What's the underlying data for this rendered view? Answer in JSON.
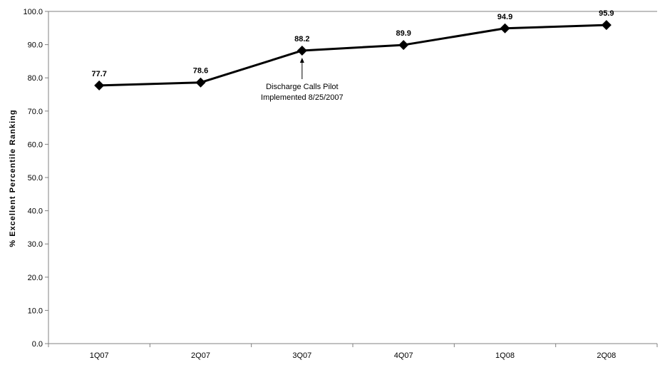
{
  "chart_data": {
    "type": "line",
    "title": "",
    "xlabel": "",
    "ylabel": "% Excellent Percentile Ranking",
    "categories": [
      "1Q07",
      "2Q07",
      "3Q07",
      "4Q07",
      "1Q08",
      "2Q08"
    ],
    "series": [
      {
        "values": [
          77.7,
          78.6,
          88.2,
          89.9,
          94.9,
          95.9
        ]
      }
    ],
    "data_labels": [
      "77.7",
      "78.6",
      "88.2",
      "89.9",
      "94.9",
      "95.9"
    ],
    "ylim": [
      0,
      100
    ],
    "yticks": [
      0,
      10,
      20,
      30,
      40,
      50,
      60,
      70,
      80,
      90,
      100
    ],
    "ytick_labels": [
      "0.0",
      "10.0",
      "20.0",
      "30.0",
      "40.0",
      "50.0",
      "60.0",
      "70.0",
      "80.0",
      "90.0",
      "100.0"
    ],
    "grid": false,
    "legend": "none",
    "annotations": [
      {
        "category": "3Q07",
        "lines": [
          "Discharge Calls Pilot",
          "Implemented 8/25/2007"
        ]
      }
    ],
    "colors": {
      "line": "#000000",
      "marker": "#000000",
      "axis": "#808080"
    }
  }
}
